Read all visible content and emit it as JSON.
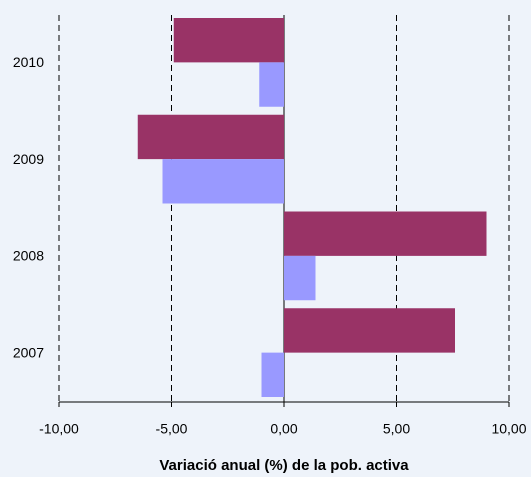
{
  "chart_data": {
    "type": "hbar",
    "x_label": "Variació anual (%) de la pob. activa",
    "categories": [
      "2010",
      "2009",
      "2008",
      "2007"
    ],
    "series": [
      {
        "color": "#993366",
        "values": [
          -4.9,
          -6.5,
          9.0,
          7.6
        ]
      },
      {
        "color": "#9999ff",
        "values": [
          -1.1,
          -5.4,
          1.4,
          -1.0
        ]
      }
    ],
    "xlim": [
      -10,
      10
    ],
    "xticks": [
      {
        "value": -10,
        "label": "-10,00"
      },
      {
        "value": -5,
        "label": "-5,00"
      },
      {
        "value": 0,
        "label": "0,00"
      },
      {
        "value": 5,
        "label": "5,00"
      },
      {
        "value": 10,
        "label": "10,00"
      }
    ],
    "grid": true
  }
}
